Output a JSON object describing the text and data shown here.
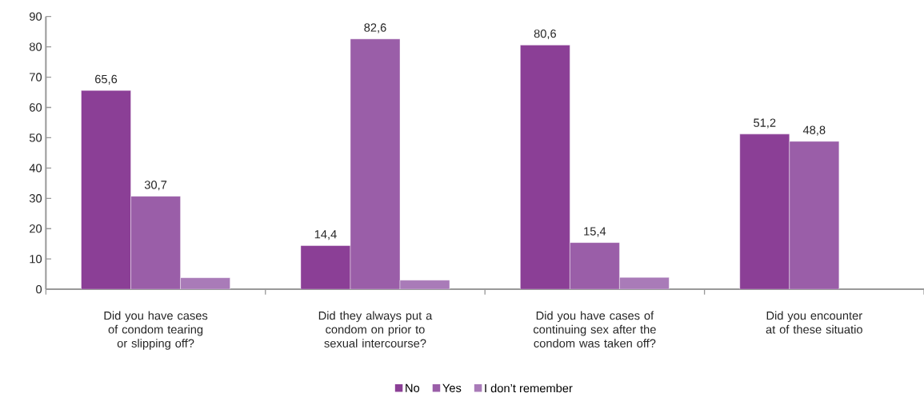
{
  "chart_data": {
    "type": "bar",
    "categories": [
      "Did you have cases of condom tearing or slipping off?",
      "Did they always put a condom on prior to sexual intercourse?",
      "Did you have cases of continuing sex after the condom was taken off?",
      "Did you encounter at of these situatio"
    ],
    "series": [
      {
        "name": "No",
        "color": "#8b3f96",
        "values": [
          65.6,
          14.4,
          80.6,
          51.2
        ],
        "value_labels": [
          "65,6",
          "14,4",
          "80,6",
          "51,2"
        ]
      },
      {
        "name": "Yes",
        "color": "#9a5ea8",
        "values": [
          30.7,
          82.6,
          15.4,
          48.8
        ],
        "value_labels": [
          "30,7",
          "82,6",
          "15,4",
          "48,8"
        ]
      },
      {
        "name": "I don’t remember",
        "color": "#a97bb8",
        "values": [
          3.8,
          3.0,
          3.9,
          null
        ]
      }
    ],
    "ylim": [
      0,
      90
    ],
    "yticks": [
      0,
      10,
      20,
      30,
      40,
      50,
      60,
      70,
      80,
      90
    ],
    "grid": false,
    "legend": "bottom"
  }
}
